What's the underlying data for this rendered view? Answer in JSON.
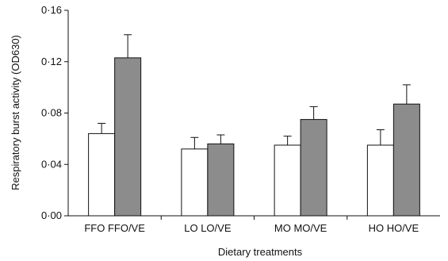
{
  "chart_data": {
    "type": "bar",
    "categories": [
      "FFO",
      "FFO/VE",
      "LO",
      "LO/VE",
      "MO",
      "MO/VE",
      "HO",
      "HO/VE"
    ],
    "groups": [
      {
        "labels": [
          "FFO",
          "FFO/VE"
        ],
        "values": [
          0.064,
          0.123
        ],
        "errors": [
          0.008,
          0.018
        ]
      },
      {
        "labels": [
          "LO",
          "LO/VE"
        ],
        "values": [
          0.052,
          0.056
        ],
        "errors": [
          0.009,
          0.007
        ]
      },
      {
        "labels": [
          "MO",
          "MO/VE"
        ],
        "values": [
          0.055,
          0.075
        ],
        "errors": [
          0.007,
          0.01
        ]
      },
      {
        "labels": [
          "HO",
          "HO/VE"
        ],
        "values": [
          0.055,
          0.087
        ],
        "errors": [
          0.012,
          0.015
        ]
      }
    ],
    "series_colors": [
      "#ffffff",
      "#8c8c8c"
    ],
    "xlabel": "Dietary treatments",
    "ylabel": "Respiratory burst activity (OD630)",
    "ylim": [
      0,
      0.16
    ],
    "yticks": [
      0.0,
      0.04,
      0.08,
      0.12,
      0.16
    ],
    "ytick_labels": [
      "0·00",
      "0·04",
      "0·08",
      "0·12",
      "0·16"
    ],
    "grid": false,
    "legend": "none"
  }
}
